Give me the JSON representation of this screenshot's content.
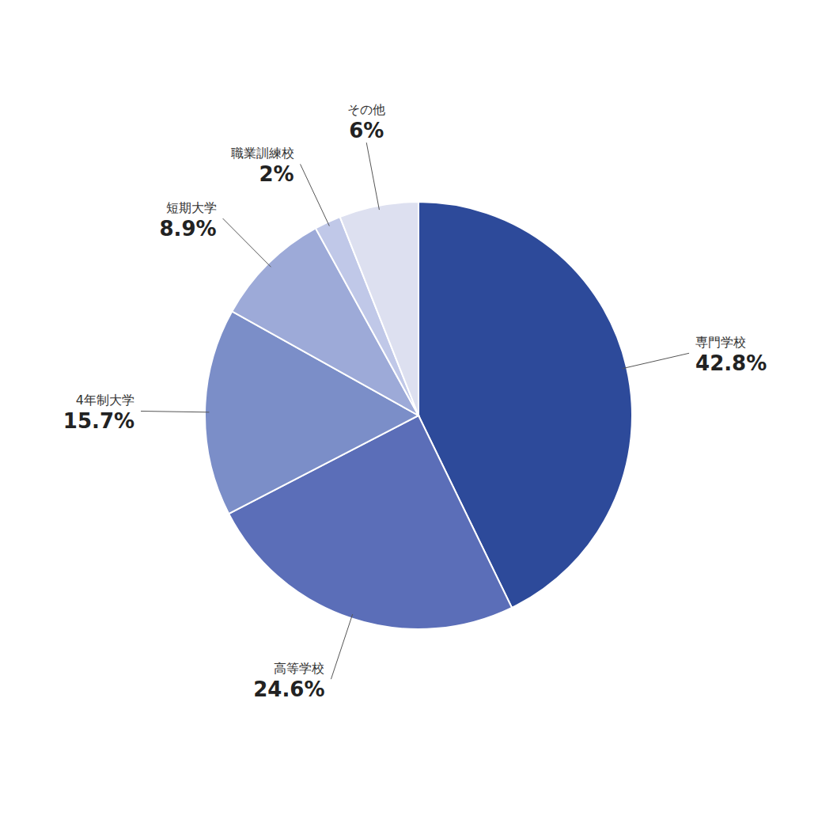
{
  "chart_data": {
    "type": "pie",
    "categories": [
      "専門学校",
      "高等学校",
      "4年制大学",
      "短期大学",
      "職業訓練校",
      "その他"
    ],
    "values": [
      42.8,
      24.6,
      15.7,
      8.9,
      2,
      6
    ],
    "value_labels": [
      "42.8%",
      "24.6%",
      "15.7%",
      "8.9%",
      "2%",
      "6%"
    ],
    "colors": [
      "#2d4a9a",
      "#5b6eb8",
      "#7b8ec8",
      "#9daad8",
      "#c0c8e8",
      "#dde0f0"
    ],
    "data_labels": true
  }
}
